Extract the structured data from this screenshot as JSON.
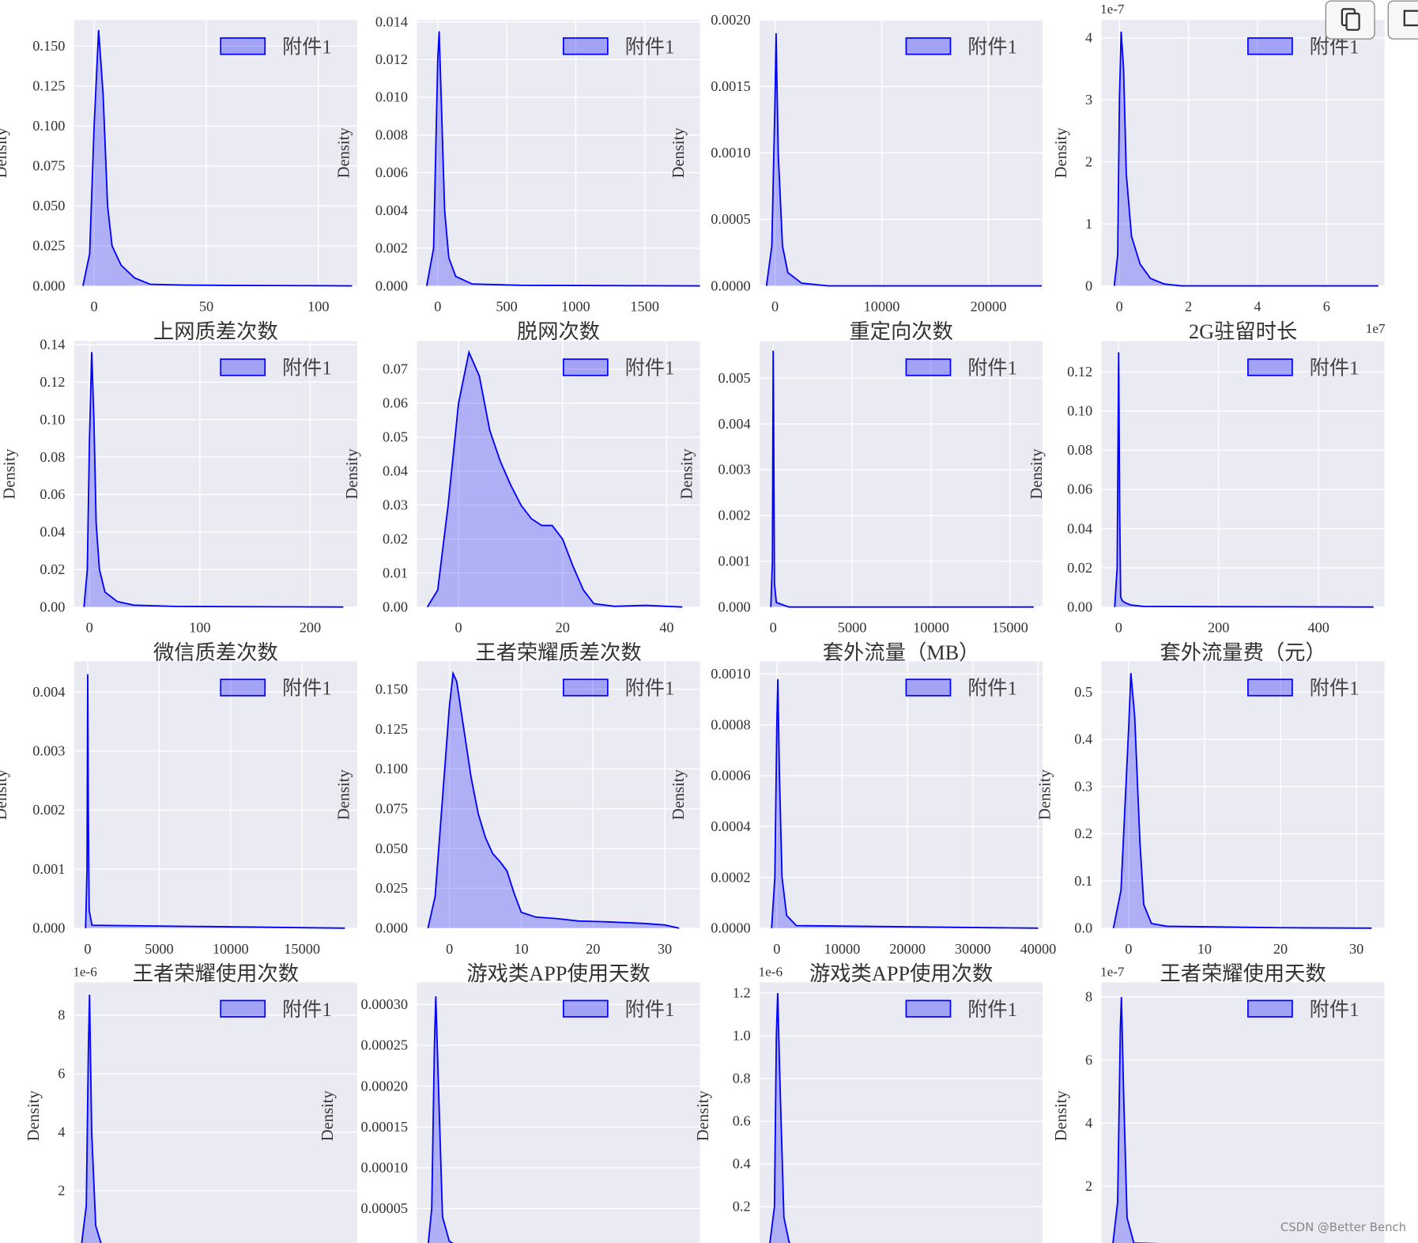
{
  "chart_data": [
    {
      "type": "area",
      "xlabel": "上网质差次数",
      "ylabel": "Density",
      "grid": true,
      "legend": "upper right",
      "x": [
        -5,
        -2,
        0,
        2,
        4,
        6,
        8,
        12,
        18,
        25,
        40,
        60,
        100,
        115
      ],
      "series": [
        {
          "name": "附件1",
          "color": "#0000ff",
          "values": [
            0,
            0.02,
            0.1,
            0.16,
            0.12,
            0.05,
            0.025,
            0.013,
            0.005,
            0.001,
            0.0005,
            0.0003,
            0.0001,
            0
          ]
        }
      ],
      "xlim": [
        -8.9,
        117.3
      ],
      "xticks": [
        0,
        50,
        100
      ],
      "ylim": [
        0,
        0.1664
      ],
      "yticks": [
        {
          "value": 0,
          "label": "0.000"
        },
        0.025,
        {
          "value": 0.05,
          "label": "0.050"
        },
        0.075,
        {
          "value": 0.1,
          "label": "0.100"
        },
        0.125,
        {
          "value": 0.15,
          "label": "0.150"
        }
      ]
    },
    {
      "type": "area",
      "xlabel": "脱网次数",
      "ylabel": "Density",
      "grid": true,
      "legend": "upper right",
      "x": [
        -80,
        -30,
        0,
        10,
        25,
        50,
        80,
        130,
        250,
        600,
        1900
      ],
      "series": [
        {
          "name": "附件1",
          "color": "#0000ff",
          "values": [
            0,
            0.002,
            0.012,
            0.0135,
            0.01,
            0.004,
            0.0015,
            0.0005,
            0.0001,
            3e-05,
            0
          ]
        }
      ],
      "xlim": [
        -151,
        1900
      ],
      "xticks": [
        0,
        500,
        1000,
        1500
      ],
      "ylim": [
        0,
        0.0141
      ],
      "yticks": [
        {
          "value": 0,
          "label": "0.000"
        },
        0.002,
        0.004,
        0.006,
        0.008,
        {
          "value": 0.01,
          "label": "0.010"
        },
        0.012,
        0.014
      ]
    },
    {
      "type": "area",
      "xlabel": "重定向次数",
      "ylabel": "Density",
      "grid": true,
      "legend": "upper right",
      "x": [
        -800,
        -300,
        0,
        100,
        300,
        700,
        1200,
        2500,
        5000,
        25000
      ],
      "series": [
        {
          "name": "附件1",
          "color": "#0000ff",
          "values": [
            0,
            0.0003,
            0.0014,
            0.0019,
            0.001,
            0.0003,
            0.0001,
            2e-05,
            0,
            0
          ]
        }
      ],
      "xlim": [
        -1441,
        25085
      ],
      "xticks": [
        0,
        10000,
        20000
      ],
      "ylim": [
        0,
        0.002
      ],
      "yticks": [
        {
          "value": 0,
          "label": "0.0000"
        },
        0.0005,
        {
          "value": 0.001,
          "label": "0.0010"
        },
        0.0015,
        {
          "value": 0.002,
          "label": "0.0020"
        }
      ]
    },
    {
      "type": "area",
      "xlabel": "2G驻留时长",
      "ylabel": "Density",
      "grid": true,
      "legend": "upper right",
      "y_offset": "1e-7",
      "x_offset": "1e7",
      "x": [
        -0.15,
        -0.05,
        0,
        0.05,
        0.12,
        0.2,
        0.35,
        0.6,
        0.9,
        1.3,
        1.8,
        7.5
      ],
      "series": [
        {
          "name": "附件1",
          "color": "#0000ff",
          "values": [
            0,
            0.5,
            3,
            4.1,
            3.5,
            1.8,
            0.8,
            0.35,
            0.12,
            0.03,
            0,
            0
          ]
        }
      ],
      "xlim": [
        -0.52,
        7.68
      ],
      "xticks": [
        0,
        2,
        4,
        6
      ],
      "ylim": [
        0,
        4.29
      ],
      "yticks": [
        0,
        1,
        2,
        3,
        4
      ]
    },
    {
      "type": "area",
      "xlabel": "微信质差次数",
      "ylabel": "Density",
      "grid": true,
      "legend": "upper right",
      "x": [
        -5,
        -2,
        0,
        2,
        4,
        6,
        9,
        14,
        25,
        40,
        80,
        230
      ],
      "series": [
        {
          "name": "附件1",
          "color": "#0000ff",
          "values": [
            0,
            0.02,
            0.09,
            0.136,
            0.1,
            0.045,
            0.02,
            0.008,
            0.003,
            0.001,
            0.0003,
            0
          ]
        }
      ],
      "xlim": [
        -13.9,
        242.6
      ],
      "xticks": [
        0,
        100,
        200
      ],
      "ylim": [
        0,
        0.1419
      ],
      "yticks": [
        {
          "value": 0,
          "label": "0.00"
        },
        0.02,
        0.04,
        0.06,
        0.08,
        {
          "value": 0.1,
          "label": "0.10"
        },
        0.12,
        0.14
      ]
    },
    {
      "type": "area",
      "xlabel": "王者荣耀质差次数",
      "ylabel": "Density",
      "grid": true,
      "legend": "upper right",
      "x": [
        -6,
        -4,
        -2,
        0,
        2,
        4,
        6,
        8,
        10,
        12,
        14,
        16,
        18,
        20,
        22,
        24,
        26,
        30,
        36,
        40,
        43
      ],
      "series": [
        {
          "name": "附件1",
          "color": "#0000ff",
          "values": [
            0,
            0.005,
            0.03,
            0.06,
            0.075,
            0.068,
            0.052,
            0.043,
            0.036,
            0.03,
            0.026,
            0.024,
            0.024,
            0.02,
            0.012,
            0.005,
            0.001,
            0.0002,
            0.0005,
            0.0002,
            0
          ]
        }
      ],
      "xlim": [
        -8,
        46.4
      ],
      "xticks": [
        0,
        20,
        40
      ],
      "ylim": [
        0,
        0.0783
      ],
      "yticks": [
        {
          "value": 0,
          "label": "0.00"
        },
        0.01,
        0.02,
        0.03,
        0.04,
        0.05,
        0.06,
        0.07
      ]
    },
    {
      "type": "area",
      "xlabel": "套外流量（MB）",
      "ylabel": "Density",
      "grid": true,
      "legend": "upper right",
      "x": [
        -150,
        -50,
        0,
        30,
        80,
        200,
        1000,
        16500
      ],
      "series": [
        {
          "name": "附件1",
          "color": "#0000ff",
          "values": [
            0,
            0.001,
            0.0056,
            0.004,
            0.0005,
            0.0001,
            0,
            0
          ]
        }
      ],
      "xlim": [
        -859,
        17068
      ],
      "xticks": [
        0,
        5000,
        10000,
        15000
      ],
      "ylim": [
        0,
        0.00581
      ],
      "yticks": [
        {
          "value": 0,
          "label": "0.000"
        },
        0.001,
        0.002,
        0.003,
        0.004,
        0.005
      ]
    },
    {
      "type": "area",
      "xlabel": "套外流量费（元）",
      "ylabel": "Density",
      "grid": true,
      "legend": "upper right",
      "x": [
        -8,
        -3,
        0,
        2,
        4,
        8,
        15,
        25,
        50,
        510
      ],
      "series": [
        {
          "name": "附件1",
          "color": "#0000ff",
          "values": [
            0,
            0.02,
            0.13,
            0.05,
            0.005,
            0.003,
            0.002,
            0.001,
            0.0003,
            0
          ]
        }
      ],
      "xlim": [
        -34.4,
        532
      ],
      "xticks": [
        0,
        200,
        400
      ],
      "ylim": [
        0,
        0.1357
      ],
      "yticks": [
        {
          "value": 0,
          "label": "0.00"
        },
        0.02,
        0.04,
        0.06,
        0.08,
        {
          "value": 0.1,
          "label": "0.10"
        },
        0.12
      ]
    },
    {
      "type": "area",
      "xlabel": "王者荣耀使用次数",
      "ylabel": "Density",
      "grid": true,
      "legend": "upper right",
      "x": [
        -150,
        -50,
        0,
        40,
        100,
        300,
        18000
      ],
      "series": [
        {
          "name": "附件1",
          "color": "#0000ff",
          "values": [
            0,
            0.001,
            0.0043,
            0.002,
            0.0003,
            5e-05,
            0
          ]
        }
      ],
      "xlim": [
        -949,
        18861
      ],
      "xticks": [
        0,
        5000,
        10000,
        15000
      ],
      "ylim": [
        0,
        0.00452
      ],
      "yticks": [
        {
          "value": 0,
          "label": "0.000"
        },
        0.001,
        0.002,
        0.003,
        0.004
      ]
    },
    {
      "type": "area",
      "xlabel": "游戏类APP使用天数",
      "ylabel": "Density",
      "grid": true,
      "legend": "upper right",
      "x": [
        -3,
        -2,
        -1,
        0,
        0.5,
        1,
        2,
        3,
        4,
        5,
        6,
        7,
        8,
        9,
        10,
        12,
        15,
        18,
        22,
        27,
        30,
        32
      ],
      "series": [
        {
          "name": "附件1",
          "color": "#0000ff",
          "values": [
            0,
            0.02,
            0.08,
            0.14,
            0.16,
            0.155,
            0.125,
            0.095,
            0.072,
            0.057,
            0.047,
            0.042,
            0.036,
            0.022,
            0.01,
            0.007,
            0.006,
            0.0045,
            0.004,
            0.003,
            0.002,
            0
          ]
        }
      ],
      "xlim": [
        -4.54,
        34.9
      ],
      "xticks": [
        0,
        10,
        20,
        30
      ],
      "ylim": [
        0,
        0.1676
      ],
      "yticks": [
        {
          "value": 0,
          "label": "0.000"
        },
        0.025,
        {
          "value": 0.05,
          "label": "0.050"
        },
        0.075,
        {
          "value": 0.1,
          "label": "0.100"
        },
        0.125,
        {
          "value": 0.15,
          "label": "0.150"
        }
      ]
    },
    {
      "type": "area",
      "xlabel": "游戏类APP使用次数",
      "ylabel": "Density",
      "grid": true,
      "legend": "upper right",
      "x": [
        -800,
        -300,
        0,
        150,
        400,
        800,
        1500,
        3000,
        40000
      ],
      "series": [
        {
          "name": "附件1",
          "color": "#0000ff",
          "values": [
            0,
            0.0002,
            0.0008,
            0.00098,
            0.0006,
            0.0002,
            5e-05,
            1e-05,
            0
          ]
        }
      ],
      "xlim": [
        -2630,
        40692
      ],
      "xticks": [
        0,
        10000,
        20000,
        30000,
        40000
      ],
      "ylim": [
        0,
        0.00105
      ],
      "yticks": [
        {
          "value": 0,
          "label": "0.0000"
        },
        0.0002,
        0.0004,
        0.0006,
        0.0008,
        {
          "value": 0.001,
          "label": "0.0010"
        }
      ]
    },
    {
      "type": "area",
      "xlabel": "王者荣耀使用天数",
      "ylabel": "Density",
      "grid": true,
      "legend": "upper right",
      "x": [
        -2,
        -1,
        0,
        0.3,
        0.8,
        1.5,
        2,
        3,
        5,
        10,
        15,
        20,
        32
      ],
      "series": [
        {
          "name": "附件1",
          "color": "#0000ff",
          "values": [
            0,
            0.08,
            0.42,
            0.54,
            0.45,
            0.18,
            0.05,
            0.01,
            0.004,
            0.003,
            0.002,
            0.001,
            0
          ]
        }
      ],
      "xlim": [
        -3.57,
        33.7
      ],
      "xticks": [
        0,
        10,
        20,
        30
      ],
      "ylim": [
        0,
        0.565
      ],
      "yticks": [
        {
          "value": 0,
          "label": "0.0"
        },
        0.1,
        0.2,
        0.3,
        0.4,
        0.5
      ]
    },
    {
      "type": "area",
      "ylabel": "Density",
      "grid": true,
      "legend": "upper right",
      "y_offset": "1e-6",
      "x": [
        -0.25,
        -0.05,
        0.03,
        0.07,
        0.15,
        0.3,
        0.5,
        1,
        10
      ],
      "series": [
        {
          "name": "附件1",
          "color": "#0000ff",
          "values": [
            0,
            1.5,
            7,
            8.7,
            4,
            0.8,
            0.2,
            0,
            0
          ]
        }
      ],
      "xlim": [
        -0.5,
        10
      ],
      "ylim": [
        0,
        9.12
      ],
      "yticks": [
        2,
        4,
        6,
        8
      ]
    },
    {
      "type": "area",
      "ylabel": "Density",
      "grid": true,
      "legend": "upper right",
      "x": [
        -0.1,
        0.05,
        0.15,
        0.2,
        0.3,
        0.45,
        0.7,
        1.2,
        10
      ],
      "series": [
        {
          "name": "附件1",
          "color": "#0000ff",
          "values": [
            0,
            5e-05,
            0.00025,
            0.00031,
            0.0002,
            4e-05,
            1e-05,
            0,
            0
          ]
        }
      ],
      "xlim": [
        -0.5,
        10
      ],
      "ylim": [
        0,
        0.000327
      ],
      "yticks": [
        5e-05,
        {
          "value": 0.0001,
          "label": "0.00010"
        },
        0.00015,
        {
          "value": 0.0002,
          "label": "0.00020"
        },
        0.00025,
        {
          "value": 0.0003,
          "label": "0.00030"
        }
      ]
    },
    {
      "type": "area",
      "ylabel": "Density",
      "grid": true,
      "legend": "upper right",
      "y_offset": "1e-6",
      "x": [
        -0.15,
        0.05,
        0.12,
        0.17,
        0.25,
        0.4,
        0.6,
        1,
        10
      ],
      "series": [
        {
          "name": "附件1",
          "color": "#0000ff",
          "values": [
            0,
            0.2,
            1,
            1.2,
            0.8,
            0.15,
            0.03,
            0,
            0
          ]
        }
      ],
      "xlim": [
        -0.5,
        10
      ],
      "ylim": [
        0,
        1.25
      ],
      "yticks": [
        0.2,
        0.4,
        0.6,
        0.8,
        {
          "value": 1,
          "label": "1.0"
        },
        1.2
      ]
    },
    {
      "type": "area",
      "ylabel": "Density",
      "grid": true,
      "legend": "upper right",
      "y_offset": "1e-7",
      "x": [
        -0.1,
        0.1,
        0.2,
        0.24,
        0.32,
        0.45,
        0.7,
        10
      ],
      "series": [
        {
          "name": "附件1",
          "color": "#0000ff",
          "values": [
            0,
            1.5,
            7,
            8,
            5,
            1,
            0.2,
            0
          ]
        }
      ],
      "xlim": [
        -0.5,
        10
      ],
      "ylim": [
        0,
        8.46
      ],
      "yticks": [
        2,
        4,
        6,
        8
      ]
    }
  ],
  "watermark": "CSDN @Better Bench"
}
